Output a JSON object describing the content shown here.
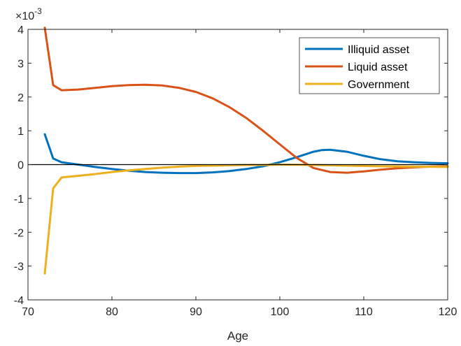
{
  "chart_data": {
    "type": "line",
    "title": "",
    "xlabel": "Age",
    "ylabel": "",
    "y_exponent_label": "×10",
    "y_exponent_power": "-3",
    "xlim": [
      70,
      120
    ],
    "ylim": [
      -4,
      4
    ],
    "x_ticks": [
      70,
      80,
      90,
      100,
      110,
      120
    ],
    "x_tick_labels": [
      "70",
      "80",
      "90",
      "100",
      "110",
      "120"
    ],
    "y_ticks": [
      -4,
      -3,
      -2,
      -1,
      0,
      1,
      2,
      3,
      4
    ],
    "y_tick_labels": [
      "-4",
      "-3",
      "-2",
      "-1",
      "0",
      "1",
      "2",
      "3",
      "4"
    ],
    "grid": false,
    "zero_line": true,
    "zero_line_color": "#000000",
    "legend_position": "top-right",
    "series": [
      {
        "name": "Illiquid asset",
        "color": "#0072BD",
        "points": [
          [
            72,
            0.9
          ],
          [
            73,
            0.18
          ],
          [
            74,
            0.07
          ],
          [
            76,
            0.0
          ],
          [
            78,
            -0.07
          ],
          [
            80,
            -0.13
          ],
          [
            82,
            -0.18
          ],
          [
            84,
            -0.22
          ],
          [
            86,
            -0.24
          ],
          [
            88,
            -0.25
          ],
          [
            90,
            -0.25
          ],
          [
            92,
            -0.23
          ],
          [
            94,
            -0.19
          ],
          [
            96,
            -0.13
          ],
          [
            98,
            -0.05
          ],
          [
            100,
            0.07
          ],
          [
            102,
            0.22
          ],
          [
            104,
            0.38
          ],
          [
            105,
            0.43
          ],
          [
            106,
            0.44
          ],
          [
            108,
            0.38
          ],
          [
            110,
            0.26
          ],
          [
            112,
            0.16
          ],
          [
            114,
            0.1
          ],
          [
            116,
            0.07
          ],
          [
            118,
            0.05
          ],
          [
            120,
            0.04
          ]
        ]
      },
      {
        "name": "Liquid asset",
        "color": "#D95319",
        "points": [
          [
            72,
            4.05
          ],
          [
            73,
            2.35
          ],
          [
            74,
            2.2
          ],
          [
            76,
            2.22
          ],
          [
            78,
            2.27
          ],
          [
            80,
            2.32
          ],
          [
            82,
            2.35
          ],
          [
            84,
            2.36
          ],
          [
            86,
            2.34
          ],
          [
            88,
            2.27
          ],
          [
            90,
            2.15
          ],
          [
            92,
            1.96
          ],
          [
            94,
            1.7
          ],
          [
            96,
            1.38
          ],
          [
            98,
            1.0
          ],
          [
            100,
            0.6
          ],
          [
            102,
            0.2
          ],
          [
            104,
            -0.1
          ],
          [
            106,
            -0.22
          ],
          [
            108,
            -0.24
          ],
          [
            110,
            -0.2
          ],
          [
            112,
            -0.15
          ],
          [
            114,
            -0.11
          ],
          [
            116,
            -0.08
          ],
          [
            118,
            -0.06
          ],
          [
            120,
            -0.05
          ]
        ]
      },
      {
        "name": "Government",
        "color": "#EDB120",
        "points": [
          [
            72,
            -3.22
          ],
          [
            73,
            -0.7
          ],
          [
            74,
            -0.38
          ],
          [
            76,
            -0.33
          ],
          [
            78,
            -0.28
          ],
          [
            80,
            -0.22
          ],
          [
            82,
            -0.17
          ],
          [
            84,
            -0.13
          ],
          [
            86,
            -0.09
          ],
          [
            88,
            -0.06
          ],
          [
            90,
            -0.04
          ],
          [
            92,
            -0.03
          ],
          [
            94,
            -0.02
          ],
          [
            96,
            -0.01
          ],
          [
            98,
            -0.01
          ],
          [
            100,
            0.0
          ],
          [
            104,
            -0.01
          ],
          [
            108,
            -0.03
          ],
          [
            112,
            -0.05
          ],
          [
            116,
            -0.06
          ],
          [
            120,
            -0.07
          ]
        ]
      }
    ]
  }
}
